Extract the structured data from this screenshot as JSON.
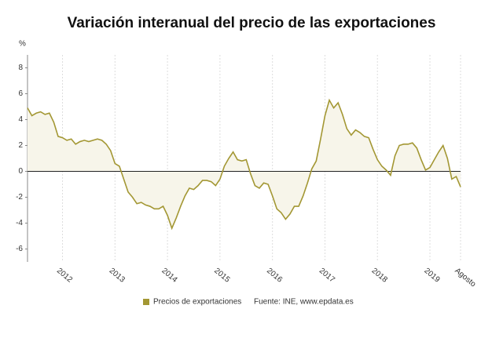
{
  "chart_data": {
    "type": "line",
    "title": "Variación interanual del precio de las exportaciones",
    "y_label": "%",
    "categories": [
      null,
      null,
      null,
      null,
      null,
      null,
      null,
      null,
      "2012",
      null,
      null,
      null,
      null,
      null,
      null,
      null,
      null,
      null,
      null,
      null,
      "2013",
      null,
      null,
      null,
      null,
      null,
      null,
      null,
      null,
      null,
      null,
      null,
      "2014",
      null,
      null,
      null,
      null,
      null,
      null,
      null,
      null,
      null,
      null,
      null,
      "2015",
      null,
      null,
      null,
      null,
      null,
      null,
      null,
      null,
      null,
      null,
      null,
      "2016",
      null,
      null,
      null,
      null,
      null,
      null,
      null,
      null,
      null,
      null,
      null,
      "2017",
      null,
      null,
      null,
      null,
      null,
      null,
      null,
      null,
      null,
      null,
      null,
      "2018",
      null,
      null,
      null,
      null,
      null,
      null,
      null,
      null,
      null,
      null,
      null,
      "2019",
      null,
      null,
      null,
      null,
      null,
      null,
      "Agosto"
    ],
    "series": [
      {
        "name": "Precios de exportaciones",
        "color": "#a39733",
        "values": [
          4.9,
          4.3,
          4.5,
          4.6,
          4.4,
          4.5,
          3.8,
          2.7,
          2.6,
          2.4,
          2.5,
          2.1,
          2.3,
          2.4,
          2.3,
          2.4,
          2.5,
          2.4,
          2.1,
          1.6,
          0.6,
          0.4,
          -0.6,
          -1.6,
          -2.0,
          -2.5,
          -2.4,
          -2.6,
          -2.7,
          -2.9,
          -2.9,
          -2.7,
          -3.4,
          -4.4,
          -3.6,
          -2.7,
          -1.9,
          -1.3,
          -1.4,
          -1.1,
          -0.7,
          -0.7,
          -0.8,
          -1.1,
          -0.6,
          0.4,
          1.0,
          1.5,
          0.9,
          0.8,
          0.9,
          -0.2,
          -1.1,
          -1.3,
          -0.9,
          -1.0,
          -1.9,
          -2.9,
          -3.2,
          -3.7,
          -3.3,
          -2.7,
          -2.7,
          -1.9,
          -0.9,
          0.2,
          0.8,
          2.5,
          4.3,
          5.5,
          4.9,
          5.3,
          4.4,
          3.3,
          2.8,
          3.2,
          3.0,
          2.7,
          2.6,
          1.7,
          0.9,
          0.4,
          0.1,
          -0.3,
          1.2,
          2.0,
          2.1,
          2.1,
          2.2,
          1.8,
          0.9,
          0.1,
          0.3,
          0.9,
          1.5,
          2.0,
          1.0,
          -0.6,
          -0.4,
          -1.2
        ]
      }
    ],
    "ylim": [
      -7,
      9
    ],
    "yticks": [
      -6,
      -4,
      -2,
      0,
      2,
      4,
      6,
      8
    ],
    "grid": true,
    "source": "Fuente: INE, www.epdata.es"
  }
}
